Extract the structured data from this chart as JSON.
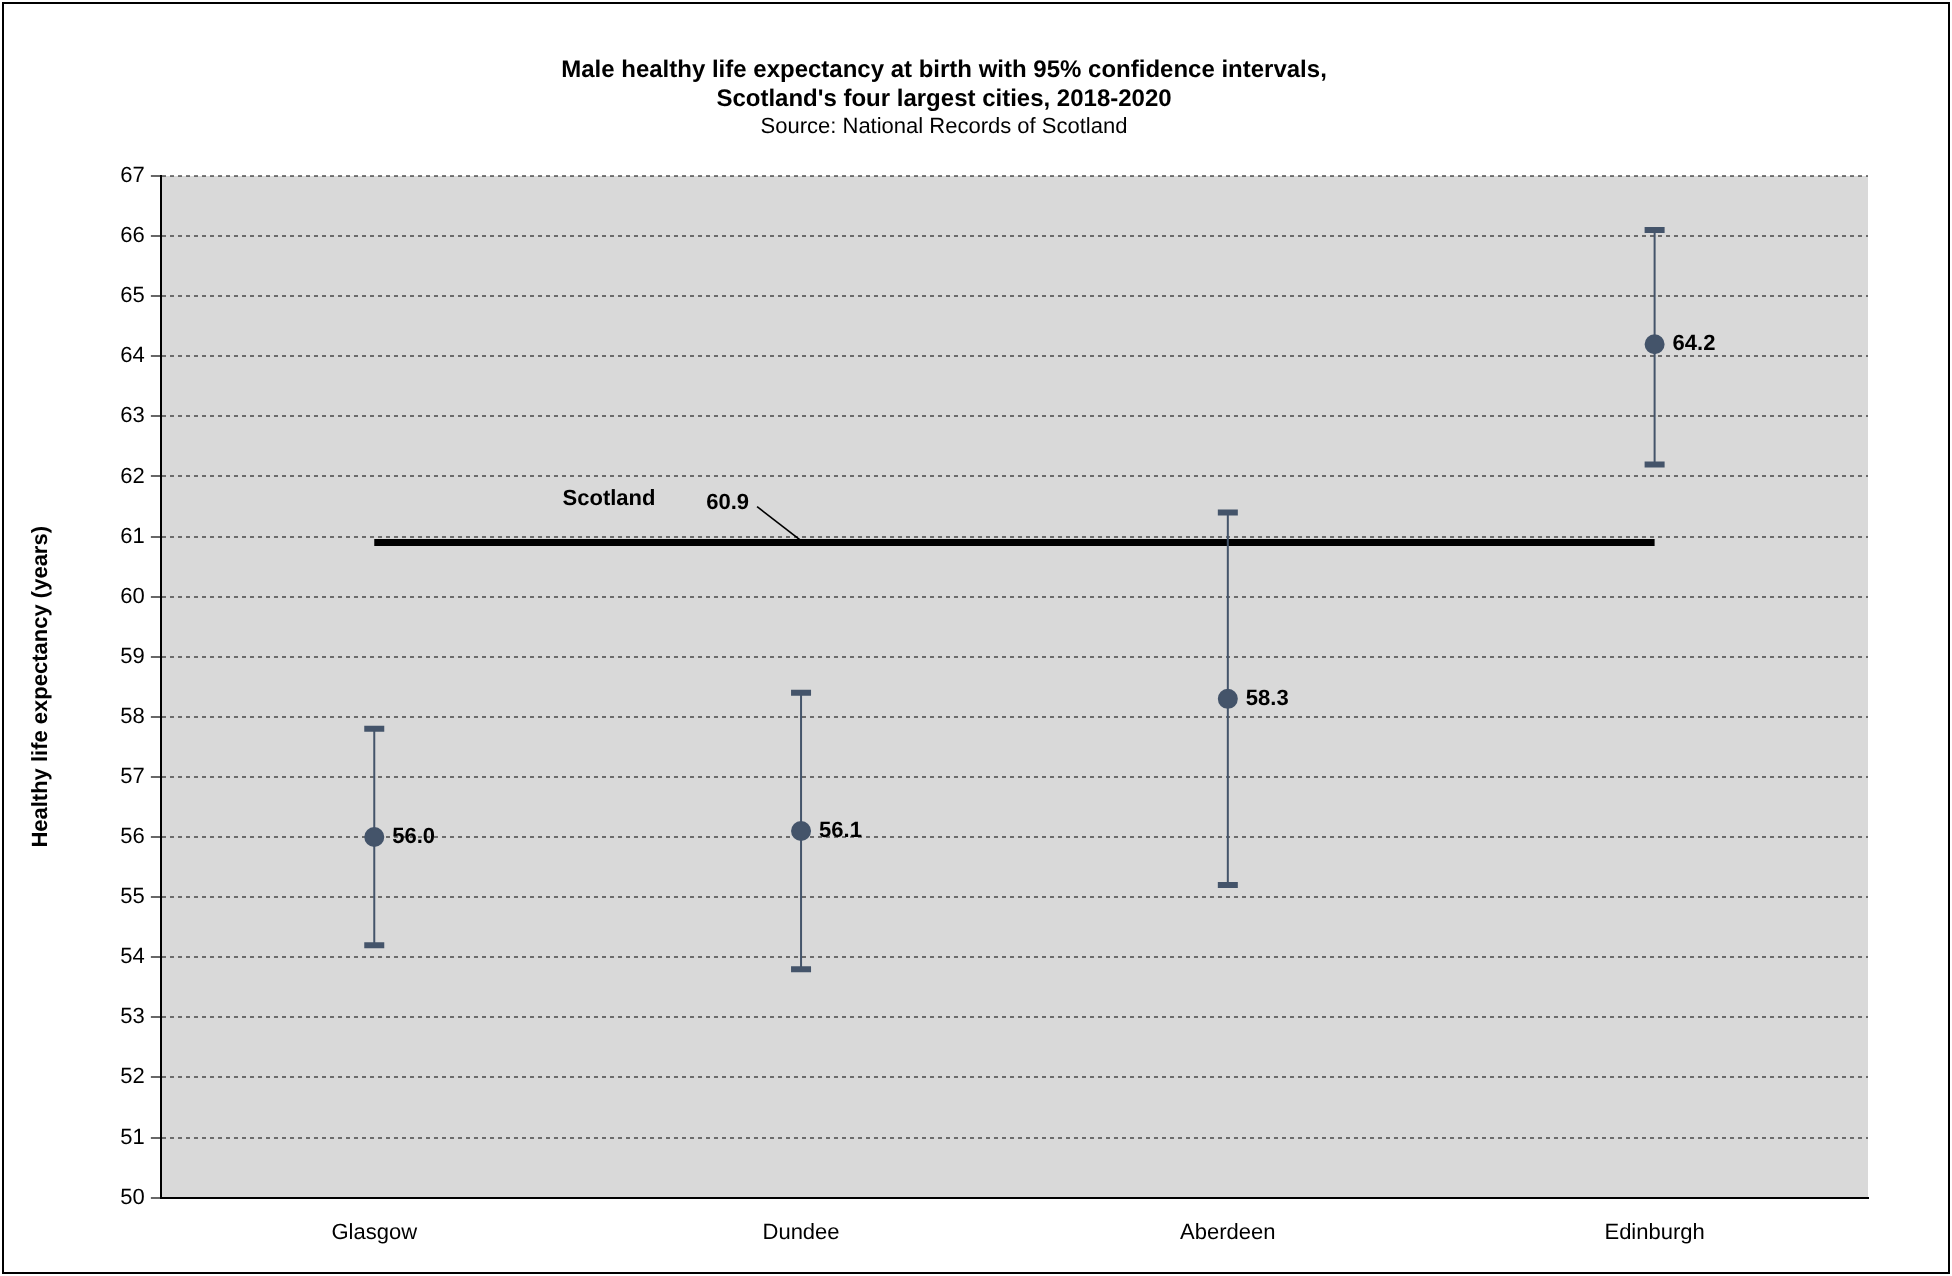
{
  "chart_data": {
    "type": "scatter",
    "title": "Male healthy life expectancy at birth with 95% confidence intervals,\nScotland's four largest cities, 2018-2020",
    "subtitle": "Source: National Records of Scotland",
    "ylabel": "Healthy life expectancy (years)",
    "categories": [
      "Glasgow",
      "Dundee",
      "Aberdeen",
      "Edinburgh"
    ],
    "values": [
      56.0,
      56.1,
      58.3,
      64.2
    ],
    "errors": [
      [
        54.2,
        57.8
      ],
      [
        53.8,
        58.4
      ],
      [
        55.2,
        61.4
      ],
      [
        62.2,
        66.1
      ]
    ],
    "value_labels": [
      "56.0",
      "56.1",
      "58.3",
      "64.2"
    ],
    "color": "#44546a",
    "marker": "circle",
    "ylim": [
      50,
      67
    ],
    "yticks": [
      50,
      51,
      52,
      53,
      54,
      55,
      56,
      57,
      58,
      59,
      60,
      61,
      62,
      63,
      64,
      65,
      66,
      67
    ],
    "grid": "y",
    "legend": false,
    "ref_lines": [
      {
        "axis": "y",
        "value": 60.9,
        "label": "Scotland",
        "color": "#000000"
      }
    ],
    "annotations": [
      {
        "text": "60.9",
        "x": "Dundee",
        "y": 60.9
      }
    ]
  }
}
